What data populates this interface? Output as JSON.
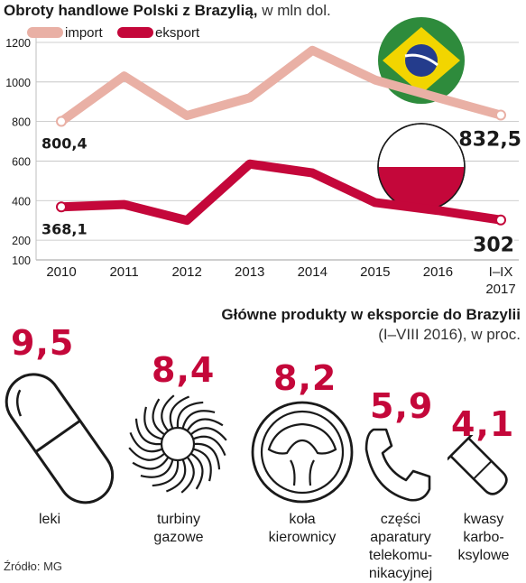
{
  "header": {
    "title_bold": "Obroty handlowe Polski z Brazylią,",
    "title_unit": " w mln dol."
  },
  "chart_data": {
    "type": "line",
    "categories": [
      "2010",
      "2011",
      "2012",
      "2013",
      "2014",
      "2015",
      "2016",
      "I–IX\n2017"
    ],
    "ylim": [
      100,
      1200
    ],
    "yticks": [
      100,
      200,
      400,
      600,
      800,
      1000,
      1200
    ],
    "grid": true,
    "legend_position": "top-left",
    "series": [
      {
        "name": "import",
        "color": "#e9b0a5",
        "values": [
          800.4,
          1030,
          830,
          920,
          1160,
          1010,
          920,
          832.5
        ]
      },
      {
        "name": "eksport",
        "color": "#c4073a",
        "values": [
          368.1,
          380,
          300,
          585,
          540,
          390,
          350,
          302
        ]
      }
    ],
    "annotations": {
      "import_first": "800,4",
      "import_last": "832,5",
      "eksport_first": "368,1",
      "eksport_last": "302"
    }
  },
  "products": {
    "title": "Główne produkty w eksporcie do Brazylii",
    "subtitle": "(I–VIII 2016), w proc.",
    "items": [
      {
        "value": "9,5",
        "label": "leki",
        "icon": "pill-icon"
      },
      {
        "value": "8,4",
        "label": "turbiny\ngazowe",
        "icon": "turbine-icon"
      },
      {
        "value": "8,2",
        "label": "koła\nkierownicy",
        "icon": "steering-wheel-icon"
      },
      {
        "value": "5,9",
        "label": "części\naparatury\ntelekomu-\nnikacyjnej",
        "icon": "phone-icon"
      },
      {
        "value": "4,1",
        "label": "kwasy\nkarbo-\nksylowe",
        "icon": "test-tube-icon"
      }
    ]
  },
  "source": "Źródło: MG",
  "colors": {
    "import": "#e9b0a5",
    "eksport": "#c4073a",
    "brazil_green": "#2e8b3c",
    "brazil_yellow": "#f2d500",
    "brazil_blue": "#243c8c"
  }
}
